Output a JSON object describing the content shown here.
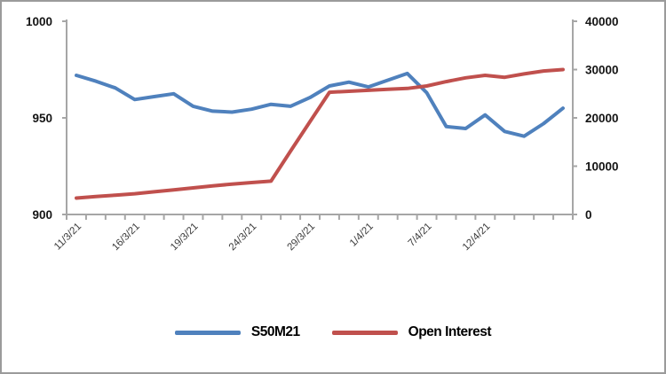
{
  "chart_data": {
    "type": "line",
    "title": "",
    "grid": false,
    "legend_position": "bottom",
    "x_axis": {
      "n_points": 26,
      "tick_labels": [
        "11/3/21",
        "16/3/21",
        "19/3/21",
        "24/3/21",
        "29/3/21",
        "1/4/21",
        "7/4/21",
        "12/4/21"
      ],
      "tick_label_indices": [
        0,
        3,
        6,
        9,
        12,
        15,
        18,
        21
      ],
      "label_rotation_deg": 45
    },
    "y_axis_left": {
      "min": 900,
      "max": 1000,
      "ticks": [
        900,
        950,
        1000
      ]
    },
    "y_axis_right": {
      "min": 0,
      "max": 40000,
      "ticks": [
        0,
        10000,
        20000,
        30000,
        40000
      ]
    },
    "series": [
      {
        "name": "S50M21",
        "color": "#4f81bd",
        "y_axis": "left",
        "values": [
          972,
          969,
          965.5,
          959.5,
          961,
          962.5,
          956,
          953.5,
          953,
          954.5,
          957,
          956,
          960.5,
          966.5,
          968.5,
          966,
          969.5,
          973,
          963,
          945.5,
          944.5,
          951.5,
          943,
          940.5,
          947,
          955
        ]
      },
      {
        "name": "Open Interest",
        "color": "#c0504d",
        "y_axis": "right",
        "values": [
          3400,
          3700,
          4000,
          4300,
          4700,
          5100,
          5500,
          5900,
          6300,
          6600,
          6900,
          13100,
          19200,
          25300,
          25500,
          25700,
          25900,
          26100,
          26600,
          27500,
          28300,
          28800,
          28400,
          29100,
          29700,
          30000
        ]
      }
    ]
  },
  "colors": {
    "axis": "#a6a6a6",
    "background": "#ffffff"
  }
}
